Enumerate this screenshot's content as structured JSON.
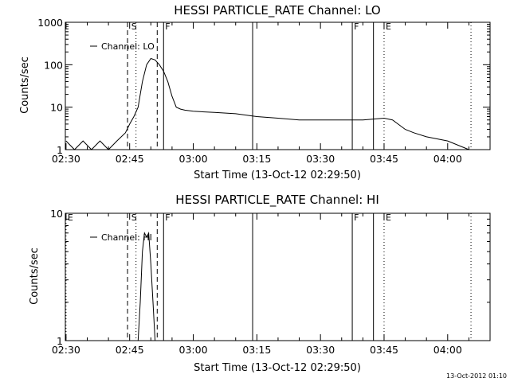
{
  "chart_data": [
    {
      "type": "line",
      "title": "HESSI PARTICLE_RATE Channel: LO",
      "xlabel": "Start Time (13-Oct-12 02:29:50)",
      "ylabel": "Counts/sec",
      "yscale": "log",
      "ylim": [
        1,
        1000
      ],
      "xlim": [
        "02:29:50",
        "04:10:00"
      ],
      "x_ticks": [
        "02:30",
        "02:45",
        "03:00",
        "03:15",
        "03:30",
        "03:45",
        "04:00"
      ],
      "y_ticks": [
        "1",
        "10",
        "100",
        "1000"
      ],
      "legend": {
        "label": "Channel: LO",
        "position": "top-left"
      },
      "series": [
        {
          "name": "Channel: LO",
          "x": [
            "02:30",
            "02:32",
            "02:34",
            "02:36",
            "02:38",
            "02:40",
            "02:42",
            "02:44",
            "02:45",
            "02:46",
            "02:47",
            "02:48",
            "02:49",
            "02:50",
            "02:51",
            "02:52",
            "02:53",
            "02:54",
            "02:55",
            "02:56",
            "02:57",
            "02:58",
            "03:00",
            "03:05",
            "03:10",
            "03:15",
            "03:20",
            "03:25",
            "03:30",
            "03:35",
            "03:40",
            "03:45",
            "03:47",
            "03:50",
            "03:52",
            "03:55",
            "04:00",
            "04:05"
          ],
          "y": [
            1.6,
            1.0,
            1.6,
            1.0,
            1.6,
            1.0,
            1.6,
            2.5,
            4,
            6,
            10,
            40,
            100,
            140,
            130,
            100,
            70,
            40,
            18,
            10,
            9,
            8.5,
            8,
            7.5,
            7,
            6,
            5.5,
            5,
            5,
            5,
            5,
            5.5,
            5,
            3,
            2.5,
            2,
            1.6,
            1.0
          ]
        }
      ],
      "markers": [
        {
          "label": "S",
          "time": "02:45:00",
          "style": "dotted-label"
        },
        {
          "label": "",
          "time": "02:46:30",
          "style": "dotted"
        },
        {
          "label": "",
          "time": "02:51:30",
          "style": "dashed"
        },
        {
          "label": "",
          "time": "02:44:30",
          "style": "dashed"
        },
        {
          "label": "F",
          "time": "02:53:00",
          "style": "solid"
        },
        {
          "label": "",
          "time": "03:14:00",
          "style": "solid"
        },
        {
          "label": "F",
          "time": "03:37:30",
          "style": "solid"
        },
        {
          "label": "",
          "time": "03:42:30",
          "style": "solid"
        },
        {
          "label": "E",
          "time": "03:45:00",
          "style": "dotted"
        },
        {
          "label": "",
          "time": "04:05:30",
          "style": "dotted"
        }
      ]
    },
    {
      "type": "line",
      "title": "HESSI PARTICLE_RATE Channel: HI",
      "xlabel": "Start Time (13-Oct-12 02:29:50)",
      "ylabel": "Counts/sec",
      "yscale": "log",
      "ylim": [
        1,
        10
      ],
      "xlim": [
        "02:29:50",
        "04:10:00"
      ],
      "x_ticks": [
        "02:30",
        "02:45",
        "03:00",
        "03:15",
        "03:30",
        "03:45",
        "04:00"
      ],
      "y_ticks": [
        "1",
        "10"
      ],
      "legend": {
        "label": "Channel: HI",
        "position": "top-left"
      },
      "series": [
        {
          "name": "Channel: HI",
          "x": [
            "02:47:00",
            "02:47:30",
            "02:48:00",
            "02:48:30",
            "02:49:00",
            "02:49:30",
            "02:50:00",
            "02:50:30",
            "02:51:00"
          ],
          "y": [
            1.0,
            2.0,
            5.0,
            7.0,
            6.5,
            7.0,
            4.0,
            2.0,
            1.0
          ]
        }
      ],
      "markers": [
        {
          "label": "E",
          "time": "02:30:00",
          "style": "dotted"
        },
        {
          "label": "S",
          "time": "02:45:00",
          "style": "dotted-label"
        },
        {
          "label": "",
          "time": "02:44:30",
          "style": "dashed"
        },
        {
          "label": "",
          "time": "02:46:30",
          "style": "dotted"
        },
        {
          "label": "",
          "time": "02:51:30",
          "style": "dashed"
        },
        {
          "label": "F",
          "time": "02:53:00",
          "style": "solid"
        },
        {
          "label": "",
          "time": "03:14:00",
          "style": "solid"
        },
        {
          "label": "F",
          "time": "03:37:30",
          "style": "solid"
        },
        {
          "label": "",
          "time": "03:42:30",
          "style": "solid"
        },
        {
          "label": "E",
          "time": "03:45:00",
          "style": "dotted"
        },
        {
          "label": "",
          "time": "04:05:30",
          "style": "dotted"
        }
      ]
    }
  ],
  "footer": {
    "timestamp": "13-Oct-2012 01:10"
  },
  "colors": {
    "background": "#ffffff",
    "ink": "#000000"
  }
}
